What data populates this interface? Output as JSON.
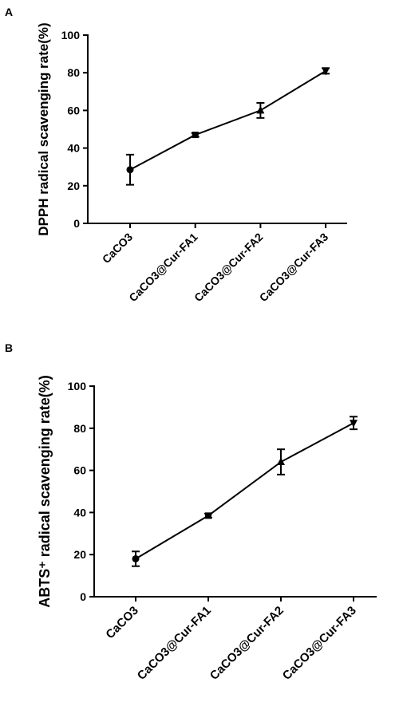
{
  "chart_data": [
    {
      "type": "line",
      "panel_label": "A",
      "y_label": "DPPH radical scavenging rate(%)",
      "categories": [
        "CaCO3",
        "CaCO3@Cur-FA1",
        "CaCO3@Cur-FA2",
        "CaCO3@Cur-FA3"
      ],
      "values": [
        28.5,
        47,
        60,
        81
      ],
      "errors": [
        8,
        1,
        4,
        1.5
      ],
      "markers": [
        "circle",
        "square",
        "triangle-up",
        "triangle-down"
      ],
      "color": "#000000",
      "ylim": [
        0,
        100
      ],
      "yticks": [
        0,
        20,
        40,
        60,
        80,
        100
      ]
    },
    {
      "type": "line",
      "panel_label": "B",
      "y_label": "ABTS⁺ radical scavenging rate(%)",
      "categories": [
        "CaCO3",
        "CaCO3@Cur-FA1",
        "CaCO3@Cur-FA2",
        "CaCO3@Cur-FA3"
      ],
      "values": [
        18,
        38.5,
        64,
        82.5
      ],
      "errors": [
        3.5,
        1,
        6,
        3
      ],
      "markers": [
        "circle",
        "square",
        "triangle-up",
        "triangle-down"
      ],
      "color": "#000000",
      "ylim": [
        0,
        100
      ],
      "yticks": [
        0,
        20,
        40,
        60,
        80,
        100
      ]
    }
  ]
}
